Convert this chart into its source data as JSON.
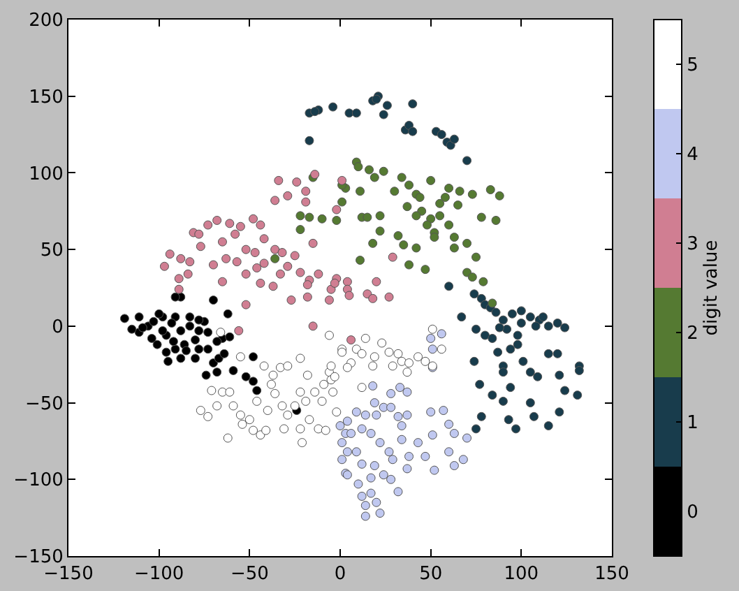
{
  "chart_data": {
    "type": "scatter",
    "clabel": "digit value",
    "xlim": [
      -150,
      150
    ],
    "xticks": [
      -150,
      -100,
      -50,
      0,
      50,
      100,
      150
    ],
    "ylim": [
      -150,
      200
    ],
    "yticks": [
      -150,
      -100,
      -50,
      0,
      50,
      100,
      150,
      200
    ],
    "clim": [
      -0.5,
      5.5
    ],
    "cticks": [
      0,
      1,
      2,
      3,
      4,
      5
    ],
    "grid": false,
    "marker": "circle",
    "series": [
      {
        "color": "#000000",
        "x": [
          -119,
          -111,
          -106,
          -98,
          -91,
          -83,
          -111,
          -101,
          -96,
          -88,
          -86,
          -80,
          -73,
          -75,
          -73,
          -65,
          -61,
          -70,
          -67,
          -74,
          -95,
          -88,
          -80,
          -68,
          -59,
          -62,
          -70,
          -88,
          -91,
          -48,
          -52,
          -48,
          -46,
          -24,
          -109,
          -103,
          -93,
          -98,
          -83,
          -91,
          -78,
          -96,
          -78,
          -115,
          -104,
          -100,
          -92,
          -85,
          -78,
          -68,
          -64
        ],
        "values": [
          5,
          6,
          0,
          6,
          6,
          6,
          -4,
          -12,
          -6,
          -3,
          -12,
          -9,
          -15,
          3,
          -4,
          -8,
          -7,
          -24,
          -21,
          -32,
          -23,
          -21,
          -21,
          -30,
          -29,
          8,
          17,
          19,
          19,
          -20,
          -33,
          -36,
          -42,
          -55,
          -1,
          3,
          2,
          -3,
          0,
          -15,
          -15,
          -17,
          -3,
          -2,
          -8,
          8,
          -10,
          -16,
          4,
          -10,
          -18
        ]
      },
      {
        "color": "#183c4c",
        "x": [
          -17,
          -4,
          5,
          9,
          18,
          21,
          20,
          26,
          24,
          40,
          36,
          38,
          40,
          53,
          56,
          59,
          61,
          63,
          70,
          -17,
          -12,
          -14,
          60,
          74,
          78,
          80,
          83,
          86,
          90,
          95,
          100,
          105,
          110,
          115,
          120,
          124,
          92,
          98,
          88,
          67,
          75,
          80,
          84,
          94,
          98,
          74,
          87,
          90,
          101,
          105,
          109,
          115,
          120,
          132,
          132,
          121,
          90,
          94,
          77,
          84,
          90,
          93,
          105,
          124,
          131,
          78,
          75,
          97,
          107,
          115,
          121,
          100,
          108,
          112
        ],
        "values": [
          139,
          143,
          139,
          139,
          147,
          150,
          148,
          144,
          138,
          145,
          128,
          131,
          127,
          127,
          125,
          120,
          118,
          122,
          108,
          121,
          141,
          140,
          26,
          21,
          18,
          14,
          12,
          9,
          4,
          8,
          2,
          6,
          4,
          0,
          2,
          -1,
          -2,
          -6,
          -1,
          6,
          -2,
          -6,
          -8,
          -15,
          -12,
          -23,
          -17,
          -26,
          -23,
          -30,
          -33,
          -18,
          -18,
          -26,
          -29,
          -32,
          -30,
          -40,
          -38,
          -45,
          -49,
          -61,
          -50,
          -42,
          -45,
          -59,
          -67,
          -67,
          -59,
          -65,
          -56,
          10,
          0,
          6
        ]
      },
      {
        "color": "#557a32",
        "x": [
          9,
          10,
          16,
          24,
          3,
          11,
          19,
          34,
          38,
          42,
          44,
          50,
          60,
          66,
          73,
          83,
          88,
          37,
          45,
          50,
          55,
          60,
          65,
          48,
          42,
          78,
          86,
          -2,
          12,
          15,
          22,
          22,
          18,
          32,
          35,
          42,
          52,
          52,
          63,
          63,
          70,
          75,
          11,
          38,
          47,
          70,
          73,
          79,
          84,
          -15,
          1,
          1,
          -22,
          -22,
          -17,
          -10,
          -36,
          58,
          30,
          55
        ],
        "values": [
          107,
          104,
          102,
          101,
          90,
          88,
          97,
          97,
          92,
          86,
          84,
          95,
          90,
          88,
          86,
          89,
          85,
          78,
          75,
          70,
          72,
          66,
          79,
          66,
          72,
          71,
          69,
          69,
          71,
          71,
          72,
          62,
          54,
          59,
          53,
          51,
          61,
          58,
          58,
          51,
          54,
          45,
          43,
          40,
          37,
          35,
          32,
          29,
          15,
          97,
          92,
          81,
          72,
          63,
          71,
          70,
          44,
          84,
          88,
          80
        ]
      },
      {
        "color": "#d07e92",
        "x": [
          -97,
          -94,
          -88,
          -83,
          -89,
          -89,
          -84,
          -81,
          -73,
          -68,
          -61,
          -77,
          -65,
          -58,
          -52,
          -47,
          -55,
          -48,
          -44,
          -63,
          -57,
          -52,
          -42,
          -36,
          -32,
          -42,
          -46,
          -34,
          -36,
          -29,
          -24,
          -19,
          -19,
          -14,
          -2,
          -15,
          -25,
          -29,
          -22,
          -17,
          -12,
          -2,
          -5,
          -18,
          4,
          -33,
          -65,
          -44,
          -37,
          -52,
          -56,
          -27,
          -15,
          -18,
          -6,
          4,
          -3,
          5,
          15,
          18,
          27,
          20,
          6,
          1,
          29,
          -70,
          -78
        ],
        "values": [
          39,
          47,
          44,
          42,
          24,
          31,
          34,
          61,
          66,
          69,
          67,
          52,
          55,
          60,
          50,
          48,
          65,
          70,
          66,
          44,
          42,
          34,
          57,
          50,
          48,
          41,
          38,
          95,
          82,
          85,
          94,
          88,
          81,
          99,
          76,
          54,
          46,
          39,
          35,
          30,
          34,
          31,
          24,
          27,
          29,
          34,
          29,
          28,
          26,
          14,
          -3,
          17,
          0,
          19,
          17,
          24,
          28,
          20,
          21,
          18,
          19,
          29,
          -9,
          95,
          45,
          40,
          60
        ]
      },
      {
        "color": "#c0c8f0",
        "x": [
          0,
          3,
          1,
          4,
          3,
          50,
          56,
          51,
          51,
          33,
          37,
          28,
          18,
          19,
          24,
          28,
          32,
          37,
          34,
          34,
          50,
          57,
          60,
          63,
          70,
          68,
          63,
          60,
          52,
          51,
          43,
          47,
          38,
          37,
          29,
          32,
          4,
          9,
          14,
          20,
          6,
          12,
          17,
          22,
          27,
          9,
          12,
          19,
          24,
          17,
          10,
          12,
          14,
          20,
          22,
          14,
          17,
          28,
          4,
          1
        ],
        "values": [
          -65,
          -70,
          -76,
          -82,
          -96,
          -8,
          -5,
          -15,
          -27,
          -40,
          -43,
          -44,
          -39,
          -50,
          -53,
          -53,
          -59,
          -58,
          -65,
          -74,
          -56,
          -55,
          -64,
          -70,
          -73,
          -87,
          -91,
          -82,
          -94,
          -71,
          -76,
          -85,
          -85,
          -93,
          -87,
          -108,
          -62,
          -56,
          -58,
          -58,
          -70,
          -67,
          -70,
          -76,
          -82,
          -82,
          -90,
          -91,
          -97,
          -99,
          -103,
          -111,
          -117,
          -115,
          -122,
          -124,
          -109,
          -100,
          -97,
          -87
        ]
      },
      {
        "color": "#ffffff",
        "x": [
          -71,
          -77,
          -73,
          -68,
          -65,
          -61,
          -59,
          -62,
          -55,
          -55,
          -50,
          -54,
          -48,
          -44,
          -41,
          -38,
          -36,
          -42,
          -37,
          -40,
          -46,
          -32,
          -29,
          -31,
          -33,
          -29,
          -22,
          -18,
          -22,
          -19,
          -25,
          -22,
          -21,
          -17,
          -12,
          -8,
          -10,
          -14,
          -9,
          -6,
          -5,
          -5,
          -2,
          -6,
          1,
          1,
          9,
          14,
          12,
          19,
          18,
          6,
          4,
          23,
          27,
          32,
          34,
          38,
          37,
          43,
          47,
          51,
          56,
          51,
          -3,
          12,
          29,
          -4,
          -66
        ],
        "values": [
          -42,
          -55,
          -59,
          -52,
          -43,
          -43,
          -52,
          -73,
          -20,
          -58,
          -61,
          -64,
          -68,
          -71,
          -68,
          -38,
          -44,
          -26,
          -32,
          -55,
          -49,
          -52,
          -58,
          -67,
          -27,
          -26,
          -21,
          -32,
          -43,
          -49,
          -52,
          -67,
          -76,
          -61,
          -67,
          -68,
          -49,
          -43,
          -38,
          -30,
          -26,
          -35,
          -56,
          -6,
          -15,
          -17,
          -15,
          -8,
          -18,
          -20,
          -26,
          -24,
          -27,
          -11,
          -17,
          -18,
          -23,
          -24,
          -30,
          -20,
          -23,
          -2,
          -15,
          -26,
          -33,
          -40,
          -26,
          -43,
          -4
        ]
      }
    ]
  }
}
